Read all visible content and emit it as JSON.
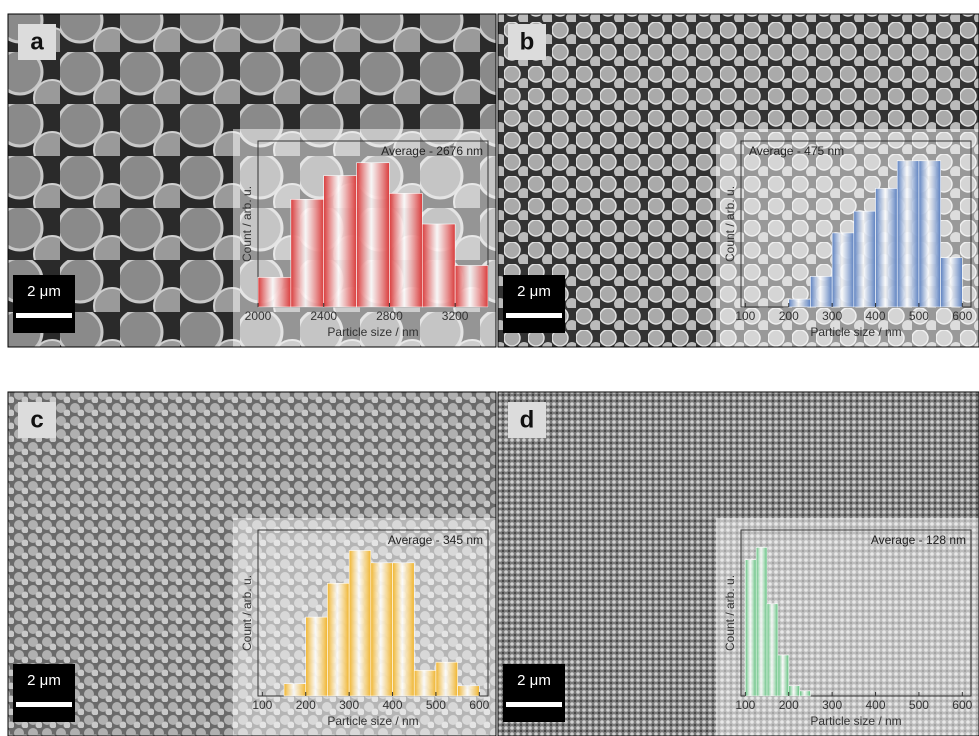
{
  "chart_data": [
    {
      "type": "histogram",
      "panel_label": "a",
      "scale_bar": "2 μm",
      "annotation": "Average - 2676 nm",
      "annotation_corner": "top right",
      "x_label": "Particle size / nm",
      "y_label": "Count / arb. u.",
      "color": "#d93b3b",
      "bins": [
        2000,
        2200,
        2400,
        2600,
        2800,
        3000,
        3200,
        3400
      ],
      "values": [
        30,
        109,
        133,
        146,
        115,
        84,
        42
      ],
      "xlim": [
        2000,
        3400
      ],
      "xticks": [
        2000,
        2400,
        2800,
        3200
      ],
      "ylim": [
        0,
        168
      ]
    },
    {
      "type": "histogram",
      "panel_label": "b",
      "scale_bar": "2 μm",
      "annotation": "Average - 475 nm",
      "annotation_corner": "top left",
      "x_label": "Particle size / nm",
      "y_label": "Count / arb. u.",
      "color": "#5b80c0",
      "bins": [
        200,
        250,
        300,
        350,
        400,
        450,
        500,
        550,
        600
      ],
      "values": [
        8,
        31,
        75,
        97,
        120,
        148,
        148,
        50
      ],
      "xlim": [
        90,
        620
      ],
      "xticks": [
        100,
        200,
        300,
        400,
        500,
        600
      ],
      "ylim": [
        0,
        168
      ]
    },
    {
      "type": "histogram",
      "panel_label": "c",
      "scale_bar": "2 μm",
      "annotation": "Average - 345 nm",
      "annotation_corner": "top right",
      "x_label": "Particle size / nm",
      "y_label": "Count / arb. u.",
      "color": "#f0b42c",
      "bins": [
        150,
        200,
        250,
        300,
        350,
        400,
        450,
        500,
        550,
        600
      ],
      "values": [
        12,
        77,
        110,
        142,
        130,
        130,
        25,
        33,
        10
      ],
      "xlim": [
        90,
        620
      ],
      "xticks": [
        100,
        200,
        300,
        400,
        500,
        600
      ],
      "ylim": [
        0,
        162
      ]
    },
    {
      "type": "histogram",
      "panel_label": "d",
      "scale_bar": "2 μm",
      "annotation": "Average - 128 nm",
      "annotation_corner": "top right",
      "x_label": "Particle size / nm",
      "y_label": "Count / arb. u.",
      "color": "#5cbf7a",
      "bins": [
        100,
        125,
        150,
        175,
        200,
        225,
        250
      ],
      "values": [
        133,
        145,
        90,
        40,
        10,
        5
      ],
      "xlim": [
        90,
        620
      ],
      "xticks": [
        100,
        200,
        300,
        400,
        500,
        600
      ],
      "ylim": [
        0,
        162
      ]
    }
  ]
}
